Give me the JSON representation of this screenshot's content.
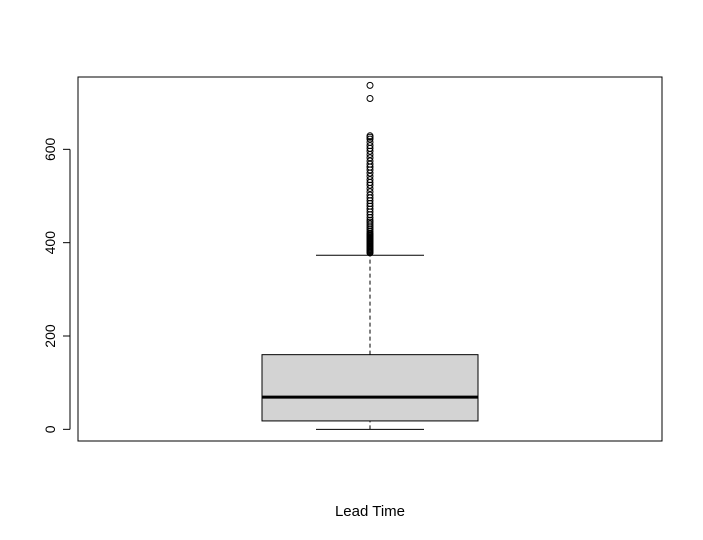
{
  "chart_data": {
    "type": "boxplot",
    "title": "",
    "xlabel": "Lead Time",
    "ylabel": "",
    "ylim": [
      -25,
      755
    ],
    "yticks": [
      0,
      200,
      400,
      600
    ],
    "box_fill": "#d3d3d3",
    "line_color": "#000000",
    "grid": false,
    "series": [
      {
        "min": 0,
        "q1": 18,
        "median": 69,
        "q3": 160,
        "whisker_high": 373,
        "outliers": [
          378,
          380,
          382,
          384,
          386,
          388,
          390,
          392,
          394,
          396,
          398,
          400,
          402,
          404,
          406,
          408,
          410,
          412,
          414,
          416,
          418,
          420,
          424,
          428,
          432,
          436,
          440,
          444,
          448,
          454,
          460,
          466,
          472,
          478,
          484,
          490,
          496,
          502,
          509,
          516,
          523,
          529,
          535,
          542,
          549,
          556,
          562,
          568,
          575,
          582,
          589,
          596,
          602,
          608,
          615,
          622,
          626,
          629,
          709,
          737
        ]
      }
    ]
  }
}
